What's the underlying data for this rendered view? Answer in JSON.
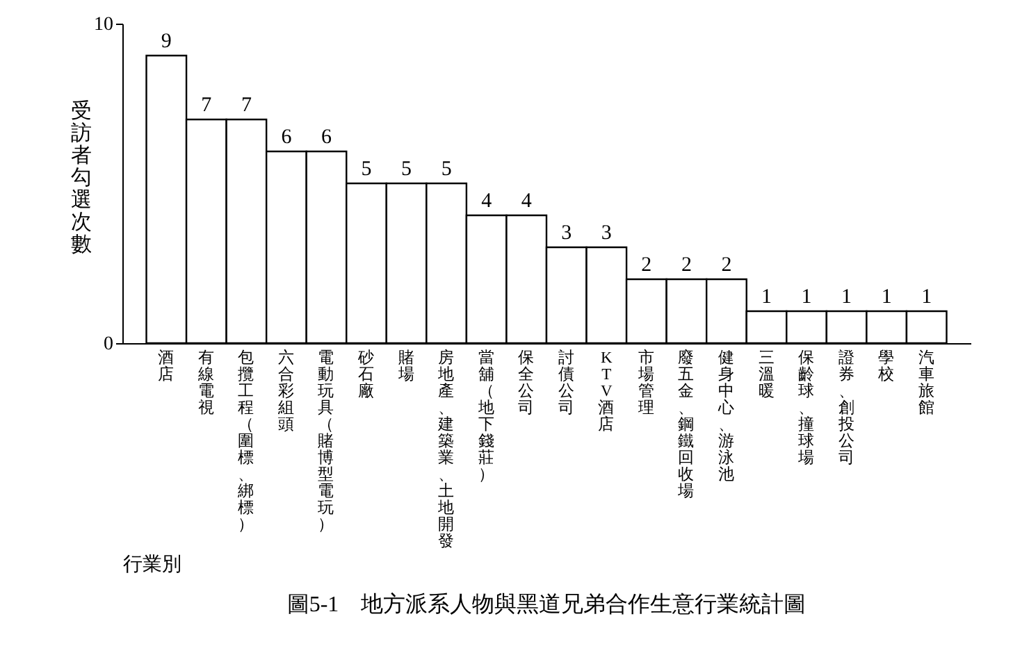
{
  "chart_data": {
    "type": "bar",
    "title": "圖5-1　地方派系人物與黑道兄弟合作生意行業統計圖",
    "xlabel": "行業別",
    "ylabel": "受訪者勾選次數",
    "categories": [
      "酒店",
      "有線電視",
      "包攬工程（圍標、綁標）",
      "六合彩組頭",
      "電動玩具（賭博型電玩）",
      "砂石廠",
      "賭場",
      "房地產、建築業、土地開發",
      "當舖（地下錢莊）",
      "保全公司",
      "討債公司",
      "KTV酒店",
      "市場管理",
      "廢五金、鋼鐵回收場",
      "健身中心、游泳池",
      "三溫暖",
      "保齡球、撞球場",
      "證券、創投公司",
      "學校",
      "汽車旅館"
    ],
    "values": [
      9,
      7,
      7,
      6,
      6,
      5,
      5,
      5,
      4,
      4,
      3,
      3,
      2,
      2,
      2,
      1,
      1,
      1,
      1,
      1
    ],
    "color": "#ffffff",
    "ylim": [
      0,
      10
    ],
    "yticks": [
      0,
      10
    ],
    "grid": false,
    "data_labels": true,
    "tick_labels": "y"
  }
}
